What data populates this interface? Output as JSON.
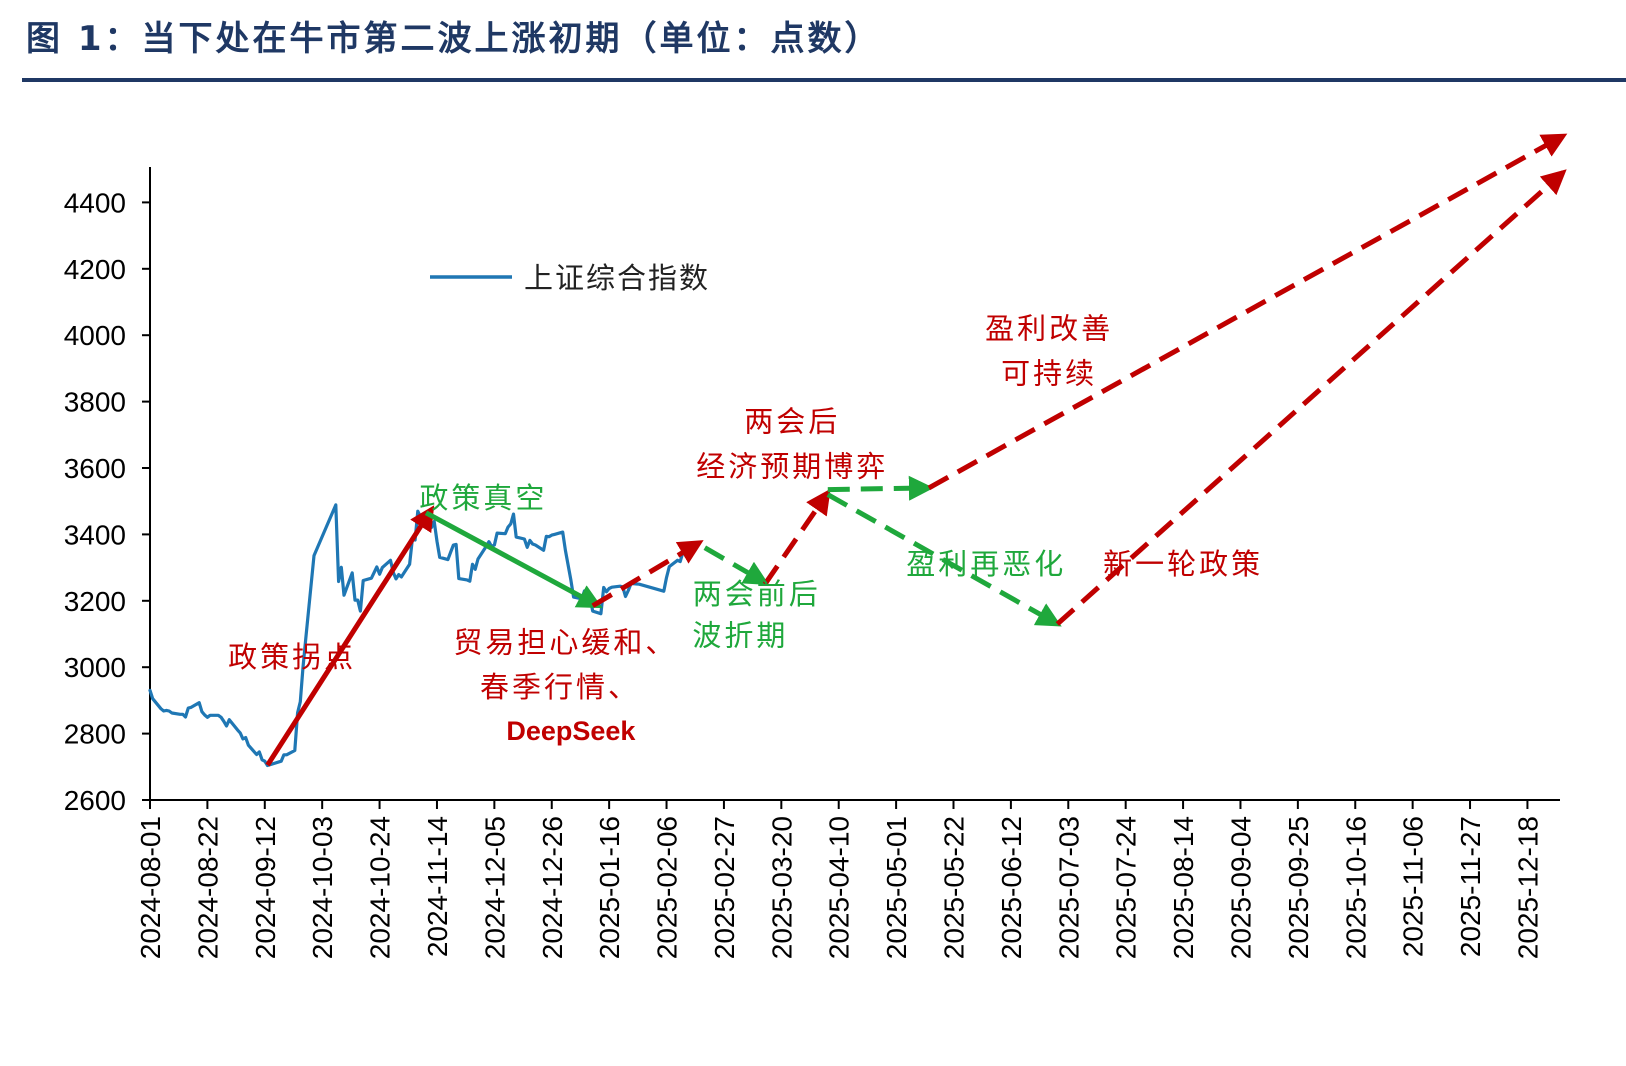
{
  "figure_title": "图 1：当下处在牛市第二波上涨初期（单位：点数）",
  "colors": {
    "title": "#1f3864",
    "index_line": "#1f77b4",
    "red_arrow": "#c00000",
    "green_arrow": "#1fa83c",
    "red_text": "#c00000",
    "green_text": "#1fa83c",
    "axis": "#000000"
  },
  "chart_data": {
    "type": "line",
    "title": "",
    "xlabel": "",
    "ylabel": "",
    "ylim": [
      2600,
      4500
    ],
    "yticks": [
      2600,
      2800,
      3000,
      3200,
      3400,
      3600,
      3800,
      4000,
      4200,
      4400
    ],
    "x_range": [
      "2024-08-01",
      "2025-12-31"
    ],
    "xtick_labels": [
      "2024-08-01",
      "2024-08-22",
      "2024-09-12",
      "2024-10-03",
      "2024-10-24",
      "2024-11-14",
      "2024-12-05",
      "2024-12-26",
      "2025-01-16",
      "2025-02-06",
      "2025-02-27",
      "2025-03-20",
      "2025-04-10",
      "2025-05-01",
      "2025-05-22",
      "2025-06-12",
      "2025-07-03",
      "2025-07-24",
      "2025-08-14",
      "2025-09-04",
      "2025-09-25",
      "2025-10-16",
      "2025-11-06",
      "2025-11-27",
      "2025-12-18"
    ],
    "grid": false,
    "legend": {
      "position": "top-left",
      "entries": [
        "上证综合指数"
      ]
    },
    "series": [
      {
        "name": "上证综合指数",
        "points": [
          [
            "2024-08-01",
            2930
          ],
          [
            "2024-08-02",
            2905
          ],
          [
            "2024-08-05",
            2875
          ],
          [
            "2024-08-06",
            2868
          ],
          [
            "2024-08-07",
            2870
          ],
          [
            "2024-08-08",
            2868
          ],
          [
            "2024-08-09",
            2862
          ],
          [
            "2024-08-12",
            2858
          ],
          [
            "2024-08-13",
            2858
          ],
          [
            "2024-08-14",
            2850
          ],
          [
            "2024-08-15",
            2877
          ],
          [
            "2024-08-16",
            2879
          ],
          [
            "2024-08-19",
            2893
          ],
          [
            "2024-08-20",
            2866
          ],
          [
            "2024-08-21",
            2856
          ],
          [
            "2024-08-22",
            2849
          ],
          [
            "2024-08-23",
            2855
          ],
          [
            "2024-08-26",
            2855
          ],
          [
            "2024-08-27",
            2849
          ],
          [
            "2024-08-28",
            2837
          ],
          [
            "2024-08-29",
            2823
          ],
          [
            "2024-08-30",
            2842
          ],
          [
            "2024-09-02",
            2811
          ],
          [
            "2024-09-03",
            2802
          ],
          [
            "2024-09-04",
            2784
          ],
          [
            "2024-09-05",
            2788
          ],
          [
            "2024-09-06",
            2765
          ],
          [
            "2024-09-09",
            2737
          ],
          [
            "2024-09-10",
            2745
          ],
          [
            "2024-09-11",
            2721
          ],
          [
            "2024-09-12",
            2717
          ],
          [
            "2024-09-13",
            2704
          ],
          [
            "2024-09-18",
            2717
          ],
          [
            "2024-09-19",
            2736
          ],
          [
            "2024-09-20",
            2736
          ],
          [
            "2024-09-23",
            2749
          ],
          [
            "2024-09-24",
            2863
          ],
          [
            "2024-09-25",
            2896
          ],
          [
            "2024-09-26",
            3000
          ],
          [
            "2024-09-27",
            3087
          ],
          [
            "2024-09-30",
            3336
          ],
          [
            "2024-10-08",
            3489
          ],
          [
            "2024-10-09",
            3258
          ],
          [
            "2024-10-10",
            3301
          ],
          [
            "2024-10-11",
            3217
          ],
          [
            "2024-10-14",
            3284
          ],
          [
            "2024-10-15",
            3202
          ],
          [
            "2024-10-16",
            3202
          ],
          [
            "2024-10-17",
            3169
          ],
          [
            "2024-10-18",
            3261
          ],
          [
            "2024-10-21",
            3268
          ],
          [
            "2024-10-22",
            3285
          ],
          [
            "2024-10-23",
            3302
          ],
          [
            "2024-10-24",
            3280
          ],
          [
            "2024-10-25",
            3300
          ],
          [
            "2024-10-28",
            3322
          ],
          [
            "2024-10-29",
            3286
          ],
          [
            "2024-10-30",
            3266
          ],
          [
            "2024-10-31",
            3279
          ],
          [
            "2024-11-01",
            3272
          ],
          [
            "2024-11-04",
            3310
          ],
          [
            "2024-11-05",
            3387
          ],
          [
            "2024-11-06",
            3383
          ],
          [
            "2024-11-07",
            3470
          ],
          [
            "2024-11-08",
            3452
          ],
          [
            "2024-11-11",
            3470
          ],
          [
            "2024-11-12",
            3421
          ],
          [
            "2024-11-13",
            3439
          ],
          [
            "2024-11-14",
            3379
          ],
          [
            "2024-11-15",
            3331
          ],
          [
            "2024-11-18",
            3324
          ],
          [
            "2024-11-19",
            3346
          ],
          [
            "2024-11-20",
            3368
          ],
          [
            "2024-11-21",
            3370
          ],
          [
            "2024-11-22",
            3267
          ],
          [
            "2024-11-25",
            3263
          ],
          [
            "2024-11-26",
            3259
          ],
          [
            "2024-11-27",
            3310
          ],
          [
            "2024-11-28",
            3295
          ],
          [
            "2024-11-29",
            3326
          ],
          [
            "2024-12-02",
            3364
          ],
          [
            "2024-12-03",
            3378
          ],
          [
            "2024-12-04",
            3364
          ],
          [
            "2024-12-05",
            3368
          ],
          [
            "2024-12-06",
            3404
          ],
          [
            "2024-12-09",
            3402
          ],
          [
            "2024-12-10",
            3422
          ],
          [
            "2024-12-11",
            3432
          ],
          [
            "2024-12-12",
            3461
          ],
          [
            "2024-12-13",
            3392
          ],
          [
            "2024-12-16",
            3386
          ],
          [
            "2024-12-17",
            3361
          ],
          [
            "2024-12-18",
            3382
          ],
          [
            "2024-12-19",
            3371
          ],
          [
            "2024-12-20",
            3368
          ],
          [
            "2024-12-23",
            3352
          ],
          [
            "2024-12-24",
            3394
          ],
          [
            "2024-12-25",
            3393
          ],
          [
            "2024-12-26",
            3398
          ],
          [
            "2024-12-27",
            3400
          ],
          [
            "2024-12-30",
            3407
          ],
          [
            "2024-12-31",
            3352
          ],
          [
            "2025-01-02",
            3262
          ],
          [
            "2025-01-03",
            3211
          ],
          [
            "2025-01-06",
            3206
          ],
          [
            "2025-01-07",
            3230
          ],
          [
            "2025-01-08",
            3230
          ],
          [
            "2025-01-09",
            3211
          ],
          [
            "2025-01-10",
            3169
          ],
          [
            "2025-01-13",
            3161
          ],
          [
            "2025-01-14",
            3240
          ],
          [
            "2025-01-15",
            3227
          ],
          [
            "2025-01-16",
            3237
          ],
          [
            "2025-01-17",
            3241
          ],
          [
            "2025-01-20",
            3244
          ],
          [
            "2025-01-21",
            3242
          ],
          [
            "2025-01-22",
            3213
          ],
          [
            "2025-01-23",
            3231
          ],
          [
            "2025-01-24",
            3252
          ],
          [
            "2025-01-27",
            3250
          ],
          [
            "2025-02-05",
            3229
          ],
          [
            "2025-02-06",
            3270
          ],
          [
            "2025-02-07",
            3303
          ],
          [
            "2025-02-10",
            3322
          ],
          [
            "2025-02-11",
            3318
          ],
          [
            "2025-02-12",
            3346
          ]
        ]
      }
    ],
    "arrows": [
      {
        "color": "red",
        "style": "solid",
        "from": [
          "2024-09-13",
          2705
        ],
        "to": [
          "2024-11-12",
          3475
        ]
      },
      {
        "color": "green",
        "style": "solid",
        "from": [
          "2024-11-10",
          3465
        ],
        "to": [
          "2025-01-12",
          3185
        ]
      },
      {
        "color": "red",
        "style": "dashed",
        "from": [
          "2025-01-10",
          3185
        ],
        "to": [
          "2025-02-18",
          3375
        ]
      },
      {
        "color": "green",
        "style": "dashed",
        "from": [
          "2025-02-20",
          3360
        ],
        "to": [
          "2025-03-14",
          3255
        ]
      },
      {
        "color": "red",
        "style": "dashed",
        "from": [
          "2025-03-14",
          3250
        ],
        "to": [
          "2025-04-06",
          3525
        ]
      },
      {
        "color": "green",
        "style": "dashed",
        "from": [
          "2025-04-06",
          3535
        ],
        "to": [
          "2025-05-13",
          3540
        ]
      },
      {
        "color": "green",
        "style": "dashed",
        "from": [
          "2025-04-06",
          3520
        ],
        "to": [
          "2025-06-29",
          3130
        ]
      },
      {
        "color": "red",
        "style": "dashed",
        "from": [
          "2025-05-13",
          3540
        ],
        "to": [
          "2025-12-31",
          4600
        ]
      },
      {
        "color": "red",
        "style": "dashed",
        "from": [
          "2025-06-29",
          3130
        ],
        "to": [
          "2025-12-31",
          4490
        ]
      }
    ],
    "annotations": [
      {
        "text": "政策拐点",
        "color": "red",
        "at": [
          "2024-09-22",
          3000
        ]
      },
      {
        "text": "政策真空",
        "color": "green",
        "at": [
          "2024-12-01",
          3480
        ]
      },
      {
        "text": "贸易担心缓和、",
        "color": "red",
        "at": [
          "2024-12-31",
          3045
        ]
      },
      {
        "text": "春季行情、",
        "color": "red",
        "at": [
          "2024-12-29",
          2910
        ]
      },
      {
        "text": "DeepSeek",
        "color": "red",
        "at": [
          "2025-01-02",
          2780
        ]
      },
      {
        "text": "两会前后",
        "color": "green",
        "at": [
          "2025-03-11",
          3190
        ]
      },
      {
        "text": "波折期",
        "color": "green",
        "at": [
          "2025-03-05",
          3065
        ]
      },
      {
        "text": "两会后",
        "color": "red",
        "at": [
          "2025-03-24",
          3710
        ]
      },
      {
        "text": "经济预期博弈",
        "color": "red",
        "at": [
          "2025-03-24",
          3575
        ]
      },
      {
        "text": "盈利改善",
        "color": "red",
        "at": [
          "2025-06-26",
          3990
        ]
      },
      {
        "text": "可持续",
        "color": "red",
        "at": [
          "2025-06-26",
          3855
        ]
      },
      {
        "text": "盈利再恶化",
        "color": "green",
        "at": [
          "2025-06-03",
          3280
        ]
      },
      {
        "text": "新一轮政策",
        "color": "red",
        "at": [
          "2025-08-14",
          3280
        ]
      }
    ]
  }
}
